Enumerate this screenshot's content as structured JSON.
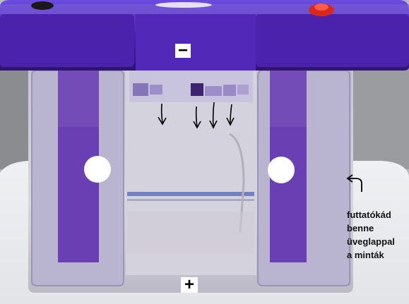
{
  "photo": {
    "cathode_label": "−",
    "anode_label": "+",
    "annotation_lines": [
      "futtatókád",
      "benne",
      "üveglappal",
      "a minták"
    ],
    "sample_arrow_count": 4,
    "icons": {
      "sample_arrows": "down-arrow-icon",
      "pointer_arrow": "curved-arrow-icon"
    },
    "colors": {
      "lid_purple": "#4a1fb0",
      "buffer_purple": "#7d5ab8",
      "samples": "#3d2470",
      "arrows": "#000000"
    }
  }
}
